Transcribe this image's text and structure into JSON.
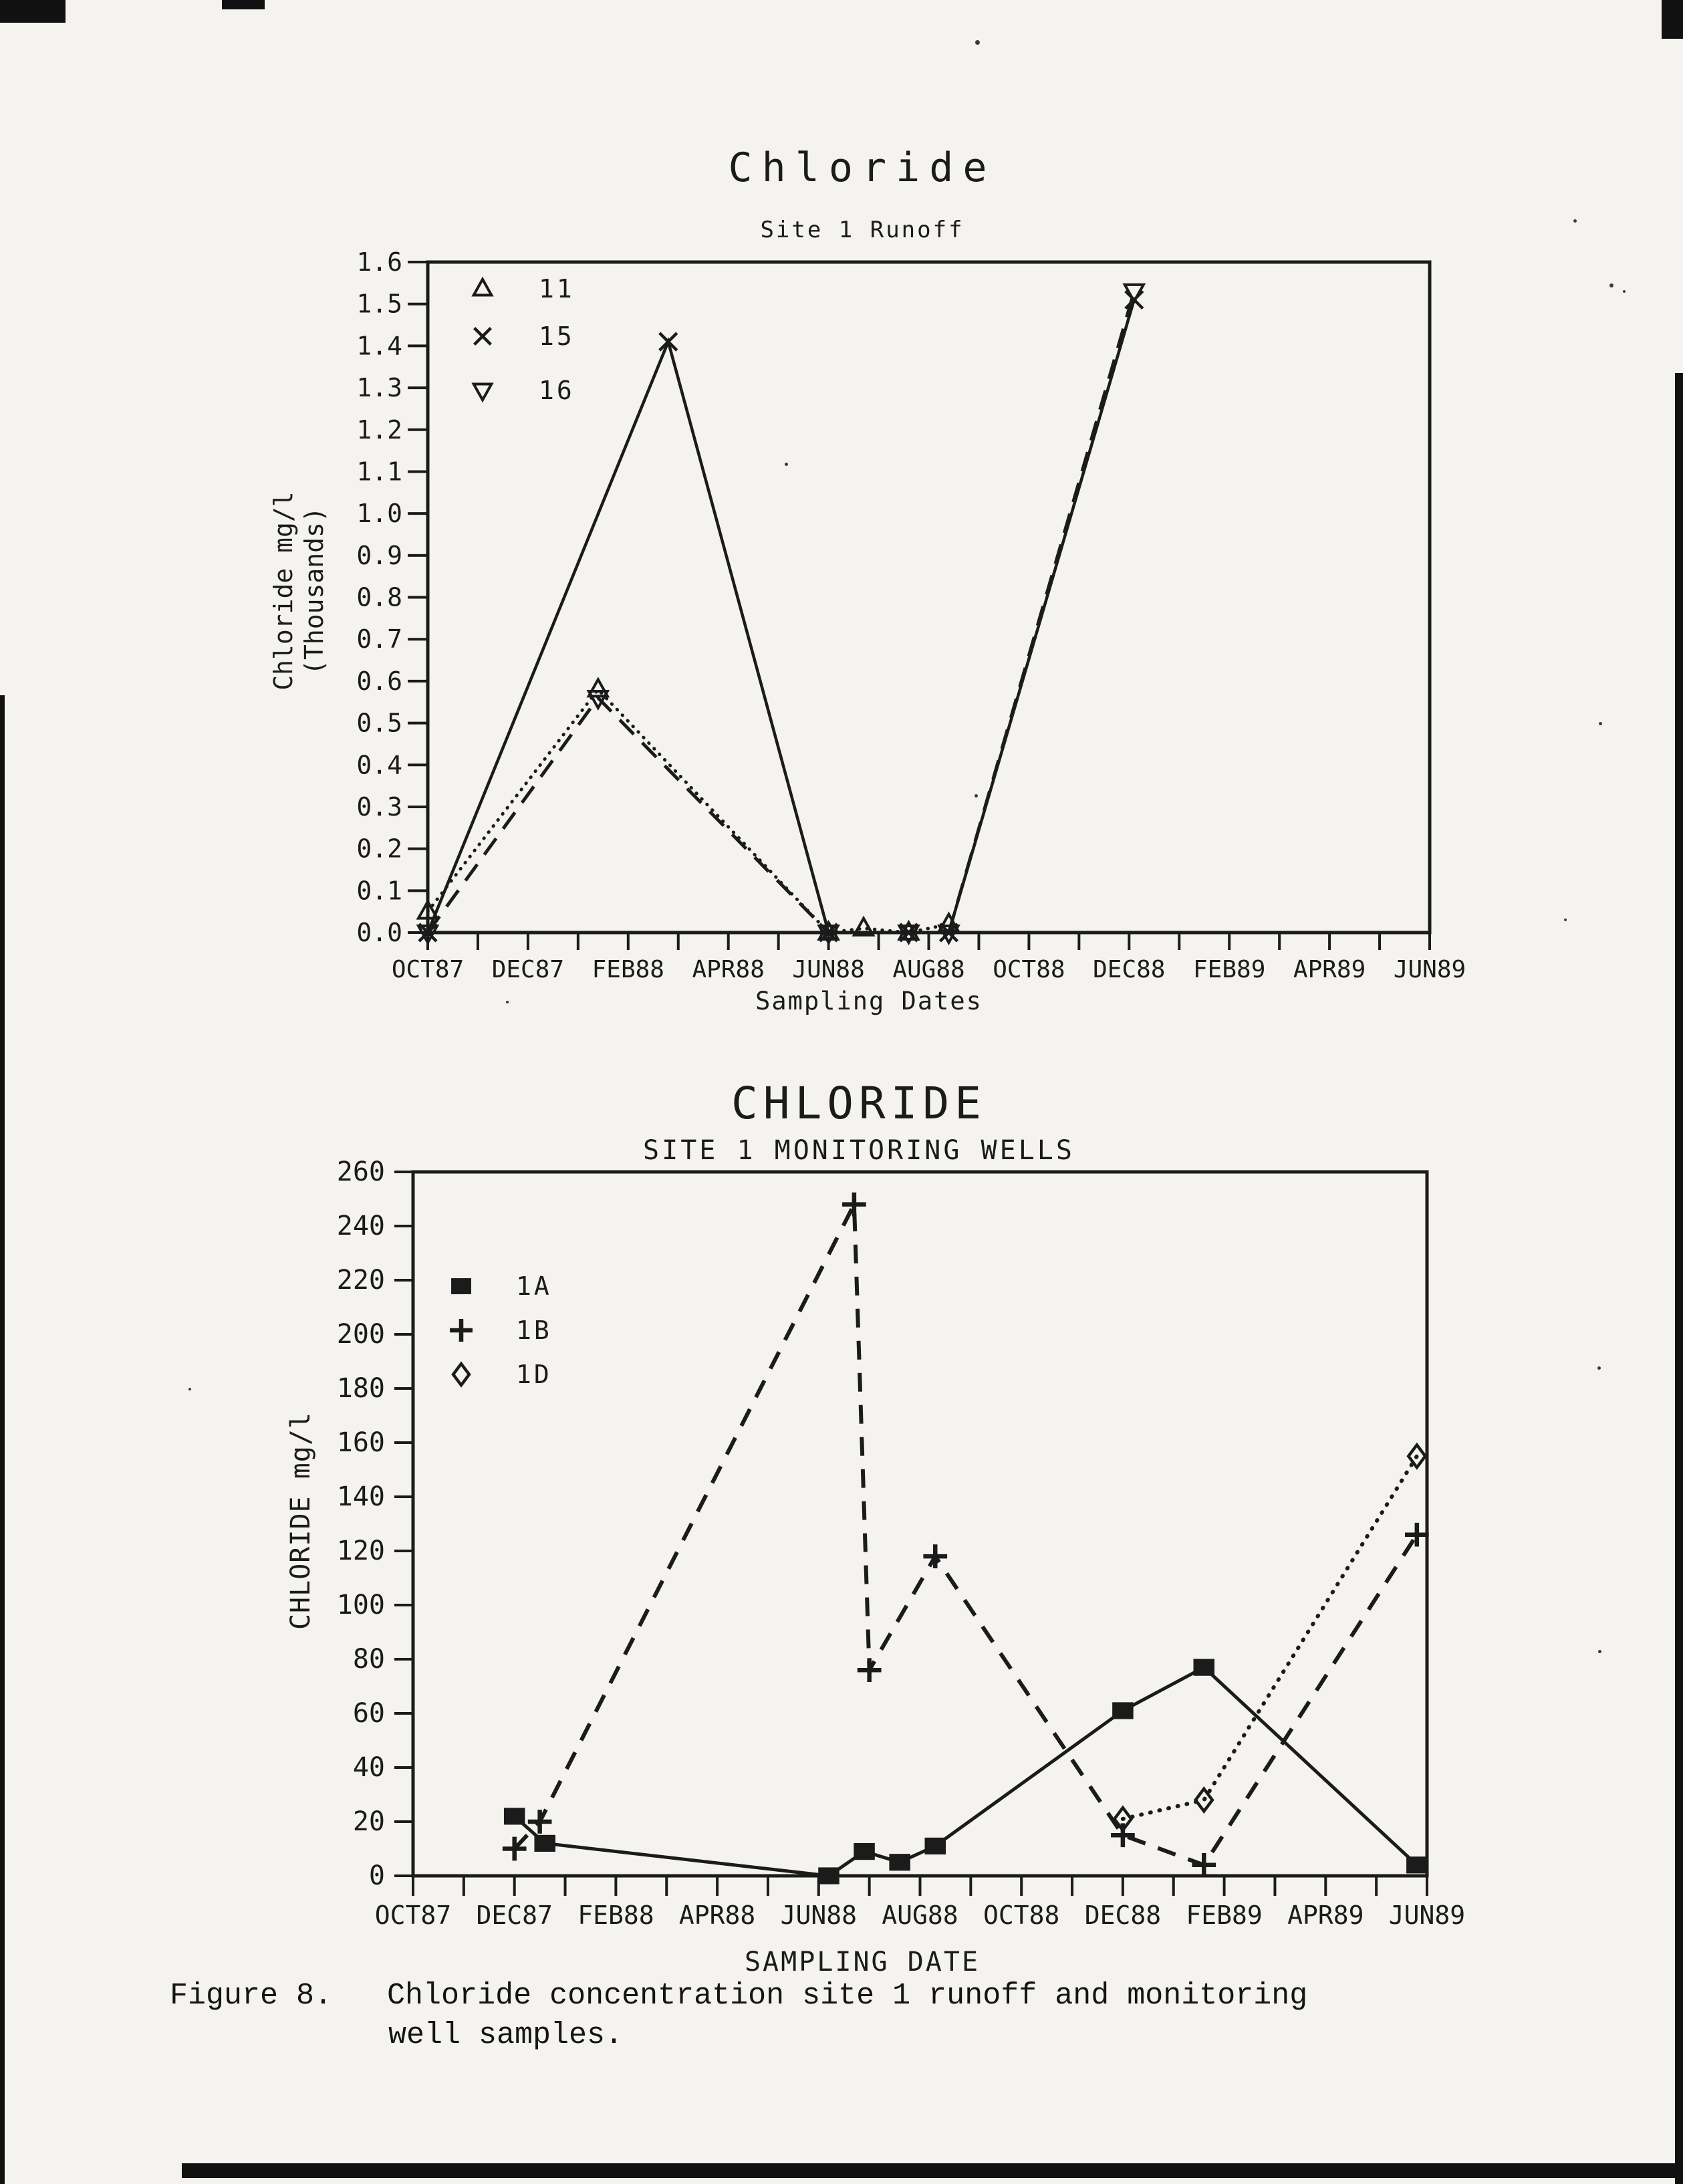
{
  "page": {
    "paper_color": "#f4f3ef",
    "ink_color": "#1b1b1b",
    "figure_caption": {
      "label": "Figure 8.",
      "line1": "Chloride concentration site 1 runoff and monitoring",
      "line2": "well samples."
    }
  },
  "chart_data": [
    {
      "type": "line",
      "title": "Chloride",
      "subtitle": "Site 1 Runoff",
      "xlabel": "Sampling Dates",
      "ylabel_line1": "Chloride mg/l",
      "ylabel_line2": "(Thousands)",
      "x_tick_labels": [
        "OCT87",
        "DEC87",
        "FEB88",
        "APR88",
        "JUN88",
        "AUG88",
        "OCT88",
        "DEC88",
        "FEB89",
        "APR89",
        "JUN89"
      ],
      "x_axis_note": "x in tick units, 0 = OCT87, 1 tick = 2 months, minor tick each month",
      "ylim": [
        0,
        1.6
      ],
      "y_tick_labels": [
        "0.0",
        "0.1",
        "0.2",
        "0.3",
        "0.4",
        "0.5",
        "0.6",
        "0.7",
        "0.8",
        "0.9",
        "1.0",
        "1.1",
        "1.2",
        "1.3",
        "1.4",
        "1.5",
        "1.6"
      ],
      "grid": false,
      "legend_position": "upper-left-inside",
      "series": [
        {
          "name": "11",
          "marker": "triangle-up",
          "line_style": "dotted",
          "x": [
            0,
            1.7,
            4,
            4.35,
            4.8,
            5.2
          ],
          "y": [
            0.05,
            0.58,
            0.0,
            0.01,
            0.0,
            0.02
          ]
        },
        {
          "name": "15",
          "marker": "x",
          "line_style": "solid",
          "x": [
            0,
            2.4,
            4,
            4.8,
            5.2,
            7.05
          ],
          "y": [
            0.0,
            1.41,
            0.0,
            0.0,
            0.0,
            1.51
          ]
        },
        {
          "name": "16",
          "marker": "triangle-down",
          "line_style": "dashed",
          "x": [
            0,
            1.7,
            4,
            4.8,
            5.2,
            7.05
          ],
          "y": [
            0.0,
            0.56,
            0.0,
            0.0,
            0.0,
            1.53
          ]
        }
      ]
    },
    {
      "type": "line",
      "title": "CHLORIDE",
      "subtitle": "SITE 1 MONITORING WELLS",
      "xlabel": "SAMPLING DATE",
      "ylabel_line1": "CHLORIDE mg/l",
      "ylabel_line2": "",
      "x_tick_labels": [
        "OCT87",
        "DEC87",
        "FEB88",
        "APR88",
        "JUN88",
        "AUG88",
        "OCT88",
        "DEC88",
        "FEB89",
        "APR89",
        "JUN89"
      ],
      "x_axis_note": "x in tick units, 0 = OCT87, 1 tick = 2 months, minor tick each month",
      "ylim": [
        0,
        260
      ],
      "y_tick_labels": [
        "0",
        "20",
        "40",
        "60",
        "80",
        "100",
        "120",
        "140",
        "160",
        "180",
        "200",
        "220",
        "240",
        "260"
      ],
      "grid": false,
      "legend_position": "upper-left-inside",
      "series": [
        {
          "name": "1A",
          "marker": "square",
          "line_style": "solid",
          "x": [
            1.0,
            1.3,
            4.1,
            4.45,
            4.8,
            5.15,
            7.0,
            7.8,
            9.9
          ],
          "y": [
            22,
            12,
            0,
            9,
            5,
            11,
            61,
            77,
            4
          ]
        },
        {
          "name": "1B",
          "marker": "plus",
          "line_style": "dashed",
          "x": [
            1.0,
            1.25,
            4.35,
            4.5,
            5.15,
            7.0,
            7.8,
            9.9
          ],
          "y": [
            10,
            20,
            248,
            76,
            118,
            15,
            4,
            126
          ]
        },
        {
          "name": "1D",
          "marker": "diamond",
          "line_style": "dotted",
          "x": [
            7.0,
            7.8,
            9.9
          ],
          "y": [
            21,
            28,
            155
          ]
        }
      ]
    }
  ]
}
